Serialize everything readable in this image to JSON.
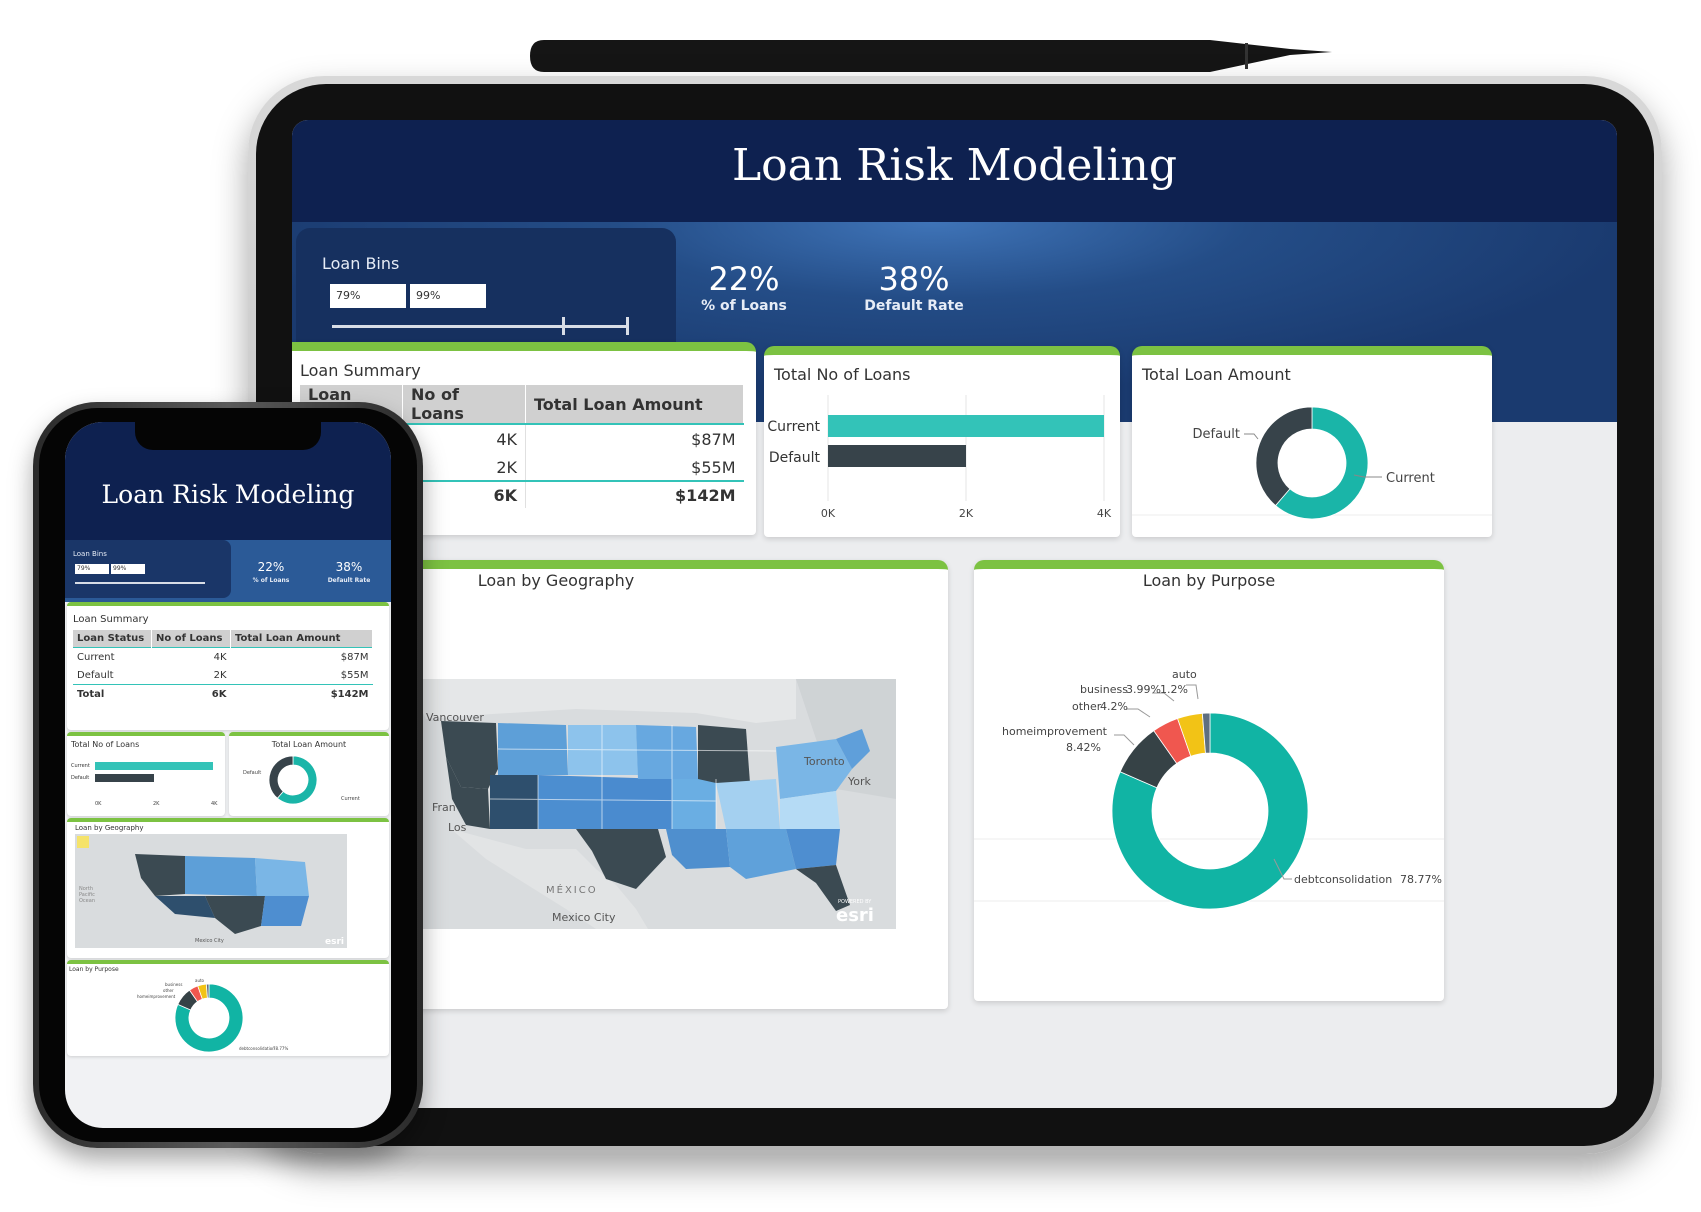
{
  "app": {
    "title": "Loan Risk Modeling"
  },
  "slicer": {
    "label": "Loan Bins",
    "min_value": "79%",
    "max_value": "99%"
  },
  "kpis": [
    {
      "value": "22%",
      "label": "% of Loans"
    },
    {
      "value": "38%",
      "label": "Default Rate"
    }
  ],
  "loan_summary": {
    "title": "Loan Summary",
    "columns": [
      "Loan Status",
      "No of Loans",
      "Total Loan Amount"
    ],
    "rows": [
      {
        "status": "Current",
        "count": "4K",
        "amount": "$87M"
      },
      {
        "status": "Default",
        "count": "2K",
        "amount": "$55M"
      },
      {
        "status": "Total",
        "count": "6K",
        "amount": "$142M"
      }
    ]
  },
  "total_no_of_loans": {
    "title": "Total No of Loans",
    "categories": [
      "Current",
      "Default"
    ],
    "ticks": [
      "0K",
      "2K",
      "4K"
    ]
  },
  "total_loan_amount": {
    "title": "Total Loan Amount",
    "labels": [
      "Default",
      "Current"
    ]
  },
  "geography": {
    "title": "Loan by Geography",
    "map_labels": [
      "Vancouver",
      "Toronto",
      "York",
      "Fran",
      "Los",
      "MÉXICO",
      "Mexico City"
    ],
    "attribution": "esri",
    "attribution_small": "POWERED BY",
    "phone_map_labels": [
      "North",
      "Pacific",
      "Ocean"
    ]
  },
  "purpose": {
    "title": "Loan by Purpose",
    "labels": [
      {
        "name": "auto",
        "pct": "1.2%"
      },
      {
        "name": "business",
        "pct": "3.99%"
      },
      {
        "name": "other",
        "pct": "4.2%"
      },
      {
        "name": "homeimprovement",
        "pct": "8.42%"
      },
      {
        "name": "debtconsolidation",
        "pct": "78.77%"
      }
    ]
  },
  "chart_data": [
    {
      "type": "bar",
      "title": "Total No of Loans",
      "orientation": "horizontal",
      "categories": [
        "Current",
        "Default"
      ],
      "values": [
        4000,
        2000
      ],
      "xlim": [
        0,
        4000
      ],
      "ticks": [
        "0K",
        "2K",
        "4K"
      ],
      "colors": [
        "#33c3b8",
        "#37434a"
      ]
    },
    {
      "type": "pie",
      "title": "Total Loan Amount",
      "donut": true,
      "categories": [
        "Current",
        "Default"
      ],
      "values": [
        87,
        55
      ],
      "colors": [
        "#1ab5a8",
        "#37434a"
      ]
    },
    {
      "type": "pie",
      "title": "Loan by Purpose",
      "donut": true,
      "categories": [
        "debtconsolidation",
        "homeimprovement",
        "other",
        "business",
        "auto"
      ],
      "values": [
        78.77,
        8.42,
        4.2,
        3.99,
        1.2
      ],
      "colors": [
        "#11b4a4",
        "#364246",
        "#f0574f",
        "#f2c316",
        "#5f6f80"
      ]
    }
  ]
}
